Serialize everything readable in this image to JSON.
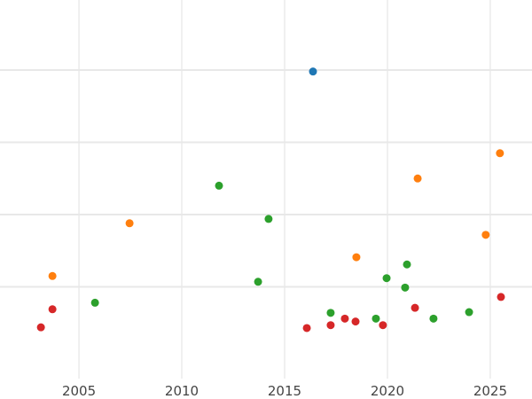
{
  "chart_data": {
    "type": "scatter",
    "title": "",
    "xlabel": "",
    "ylabel": "",
    "xlim": [
      2001.16,
      2027.03
    ],
    "ylim": [
      -0.27,
      4.97
    ],
    "x_ticks": [
      2005,
      2010,
      2015,
      2020,
      2025
    ],
    "x_tick_labels": [
      "2005",
      "2010",
      "2015",
      "2020",
      "2025"
    ],
    "y_gridlines": [
      1,
      2,
      3,
      4
    ],
    "grid": true,
    "series": [
      {
        "color": "#1f77b4",
        "points": [
          [
            2016.38,
            3.98
          ]
        ]
      },
      {
        "color": "#ff7f0e",
        "points": [
          [
            2003.71,
            1.15
          ],
          [
            2007.46,
            1.88
          ],
          [
            2018.49,
            1.41
          ],
          [
            2021.47,
            2.5
          ],
          [
            2024.78,
            1.72
          ],
          [
            2025.47,
            2.85
          ]
        ]
      },
      {
        "color": "#2ca02c",
        "points": [
          [
            2005.78,
            0.78
          ],
          [
            2011.81,
            2.4
          ],
          [
            2014.22,
            1.94
          ],
          [
            2013.71,
            1.07
          ],
          [
            2017.24,
            0.64
          ],
          [
            2019.44,
            0.56
          ],
          [
            2019.96,
            1.12
          ],
          [
            2020.95,
            1.31
          ],
          [
            2020.86,
            0.99
          ],
          [
            2022.24,
            0.56
          ],
          [
            2023.97,
            0.65
          ]
        ]
      },
      {
        "color": "#d62728",
        "points": [
          [
            2003.15,
            0.44
          ],
          [
            2003.71,
            0.69
          ],
          [
            2016.08,
            0.43
          ],
          [
            2017.24,
            0.47
          ],
          [
            2017.93,
            0.56
          ],
          [
            2018.45,
            0.52
          ],
          [
            2019.78,
            0.47
          ],
          [
            2021.34,
            0.71
          ],
          [
            2025.52,
            0.86
          ]
        ]
      }
    ]
  }
}
